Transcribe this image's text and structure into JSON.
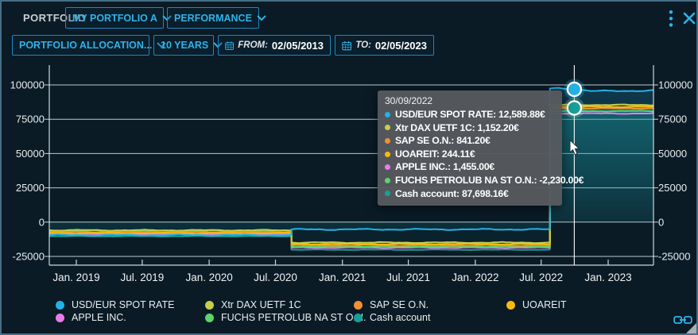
{
  "header": {
    "title": "PORTFOLIO",
    "portfolio_select": "MY PORTFOLIO A",
    "view_select": "PERFORMANCE"
  },
  "toolbar": {
    "allocation_select": "PORTFOLIO ALLOCATION...",
    "range_select": "10 YEARS",
    "from_label": "FROM:",
    "from_value": "02/05/2013",
    "to_label": "TO:",
    "to_value": "02/05/2023"
  },
  "tooltip": {
    "date": "30/09/2022",
    "rows": [
      {
        "label": "USD/EUR SPOT RATE",
        "value": "12,589.88€",
        "color": "#25b1e6"
      },
      {
        "label": "Xtr DAX UETF 1C",
        "value": "1,152.20€",
        "color": "#c6cf4a"
      },
      {
        "label": "SAP SE O.N.",
        "value": "841.20€",
        "color": "#ef9133"
      },
      {
        "label": "UOAREIT",
        "value": "244.11€",
        "color": "#f7bb0e"
      },
      {
        "label": "APPLE INC.",
        "value": "1,455.00€",
        "color": "#e97ce9"
      },
      {
        "label": "FUCHS PETROLUB NA ST O.N.",
        "value": "-2,230.00€",
        "color": "#5ed36a"
      },
      {
        "label": "Cash account",
        "value": "87,698.16€",
        "color": "#16a096"
      }
    ]
  },
  "legend": [
    {
      "label": "USD/EUR SPOT RATE",
      "color": "#25b1e6"
    },
    {
      "label": "Xtr DAX UETF 1C",
      "color": "#c6cf4a"
    },
    {
      "label": "SAP SE O.N.",
      "color": "#ef9133"
    },
    {
      "label": "UOAREIT",
      "color": "#f7bb0e"
    },
    {
      "label": "APPLE INC.",
      "color": "#e97ce9"
    },
    {
      "label": "FUCHS PETROLUB NA ST O.N.",
      "color": "#5ed36a"
    },
    {
      "label": "Cash account",
      "color": "#16a096"
    }
  ],
  "chart_data": {
    "type": "line",
    "title": "",
    "xlabel": "",
    "ylabel": "",
    "ylim": [
      -31000,
      114000
    ],
    "grid": true,
    "legend_position": "bottom",
    "x_ticks": [
      {
        "label": "Jan. 2019",
        "date": "2019-01-01"
      },
      {
        "label": "Jul. 2019",
        "date": "2019-07-01"
      },
      {
        "label": "Jan. 2020",
        "date": "2020-01-01"
      },
      {
        "label": "Jul. 2020",
        "date": "2020-07-01"
      },
      {
        "label": "Jan. 2021",
        "date": "2021-01-01"
      },
      {
        "label": "Jul. 2021",
        "date": "2021-07-01"
      },
      {
        "label": "Jan. 2022",
        "date": "2022-01-01"
      },
      {
        "label": "Jul. 2022",
        "date": "2022-07-01"
      },
      {
        "label": "Jan. 2023",
        "date": "2023-01-01"
      }
    ],
    "y_ticks": [
      100000,
      75000,
      50000,
      25000,
      0,
      -25000
    ],
    "window": {
      "start": "2018-10-19",
      "end": "2023-05-05"
    },
    "series": [
      {
        "name": "Cash account",
        "color": "#16a096",
        "fill_opacity": 0.5,
        "noise": 260,
        "points": [
          [
            "2018-10-19",
            -10300
          ],
          [
            "2020-08-14",
            -10300
          ],
          [
            "2020-08-14",
            -20100
          ],
          [
            "2022-07-25",
            -20100
          ],
          [
            "2022-07-25",
            83200
          ],
          [
            "2023-05-05",
            83200
          ]
        ]
      },
      {
        "name": "APPLE INC.",
        "color": "#e97ce9",
        "noise": 380,
        "points": [
          [
            "2018-10-19",
            -8600
          ],
          [
            "2020-08-14",
            -8600
          ],
          [
            "2020-08-14",
            -18600
          ],
          [
            "2022-07-25",
            -18600
          ],
          [
            "2022-07-25",
            79200
          ],
          [
            "2023-05-05",
            79200
          ]
        ]
      },
      {
        "name": "FUCHS PETROLUB NA ST O.N.",
        "color": "#5ed36a",
        "noise": 380,
        "points": [
          [
            "2018-10-19",
            -6400
          ],
          [
            "2020-08-14",
            -6400
          ],
          [
            "2020-08-14",
            -17800
          ],
          [
            "2022-07-25",
            -17800
          ],
          [
            "2022-07-25",
            80900
          ],
          [
            "2023-05-05",
            80900
          ]
        ]
      },
      {
        "name": "SAP SE O.N.",
        "color": "#ef9133",
        "noise": 420,
        "points": [
          [
            "2018-10-19",
            -7300
          ],
          [
            "2020-08-14",
            -7300
          ],
          [
            "2020-08-14",
            -16900
          ],
          [
            "2022-07-25",
            -16900
          ],
          [
            "2022-07-25",
            82900
          ],
          [
            "2023-05-05",
            82900
          ]
        ]
      },
      {
        "name": "UOAREIT",
        "color": "#f7bb0e",
        "noise": 420,
        "points": [
          [
            "2018-10-19",
            -8000
          ],
          [
            "2020-08-14",
            -8000
          ],
          [
            "2020-08-14",
            -16000
          ],
          [
            "2022-07-25",
            -16000
          ],
          [
            "2022-07-25",
            84100
          ],
          [
            "2023-05-05",
            84100
          ]
        ]
      },
      {
        "name": "Xtr DAX UETF 1C",
        "color": "#c6cf4a",
        "noise": 460,
        "points": [
          [
            "2018-10-19",
            -5900
          ],
          [
            "2020-08-14",
            -5900
          ],
          [
            "2020-08-14",
            -14900
          ],
          [
            "2022-07-25",
            -14900
          ],
          [
            "2022-07-25",
            85500
          ],
          [
            "2023-05-05",
            85400
          ]
        ]
      },
      {
        "name": "USD/EUR SPOT RATE",
        "color": "#25b1e6",
        "fill_opacity": 0.2,
        "noise": 600,
        "points": [
          [
            "2018-10-19",
            -9400
          ],
          [
            "2020-08-14",
            -9400
          ],
          [
            "2020-08-14",
            -5300
          ],
          [
            "2022-07-25",
            -5300
          ],
          [
            "2022-07-25",
            97400
          ],
          [
            "2022-08-20",
            97800
          ],
          [
            "2022-09-30",
            96800
          ],
          [
            "2022-11-20",
            95500
          ],
          [
            "2023-05-05",
            95900
          ]
        ]
      }
    ],
    "crosshair": {
      "date": "2022-09-30"
    },
    "markers": [
      {
        "series": "USD/EUR SPOT RATE",
        "date": "2022-09-30",
        "value": 96800,
        "color": "#25b1e6",
        "glow": "rgba(37,177,230,0.30)"
      },
      {
        "series": "Cash account",
        "date": "2022-09-30",
        "value": 83200,
        "color": "#16a096",
        "glow": "rgba(120,220,160,0.30)"
      }
    ]
  }
}
